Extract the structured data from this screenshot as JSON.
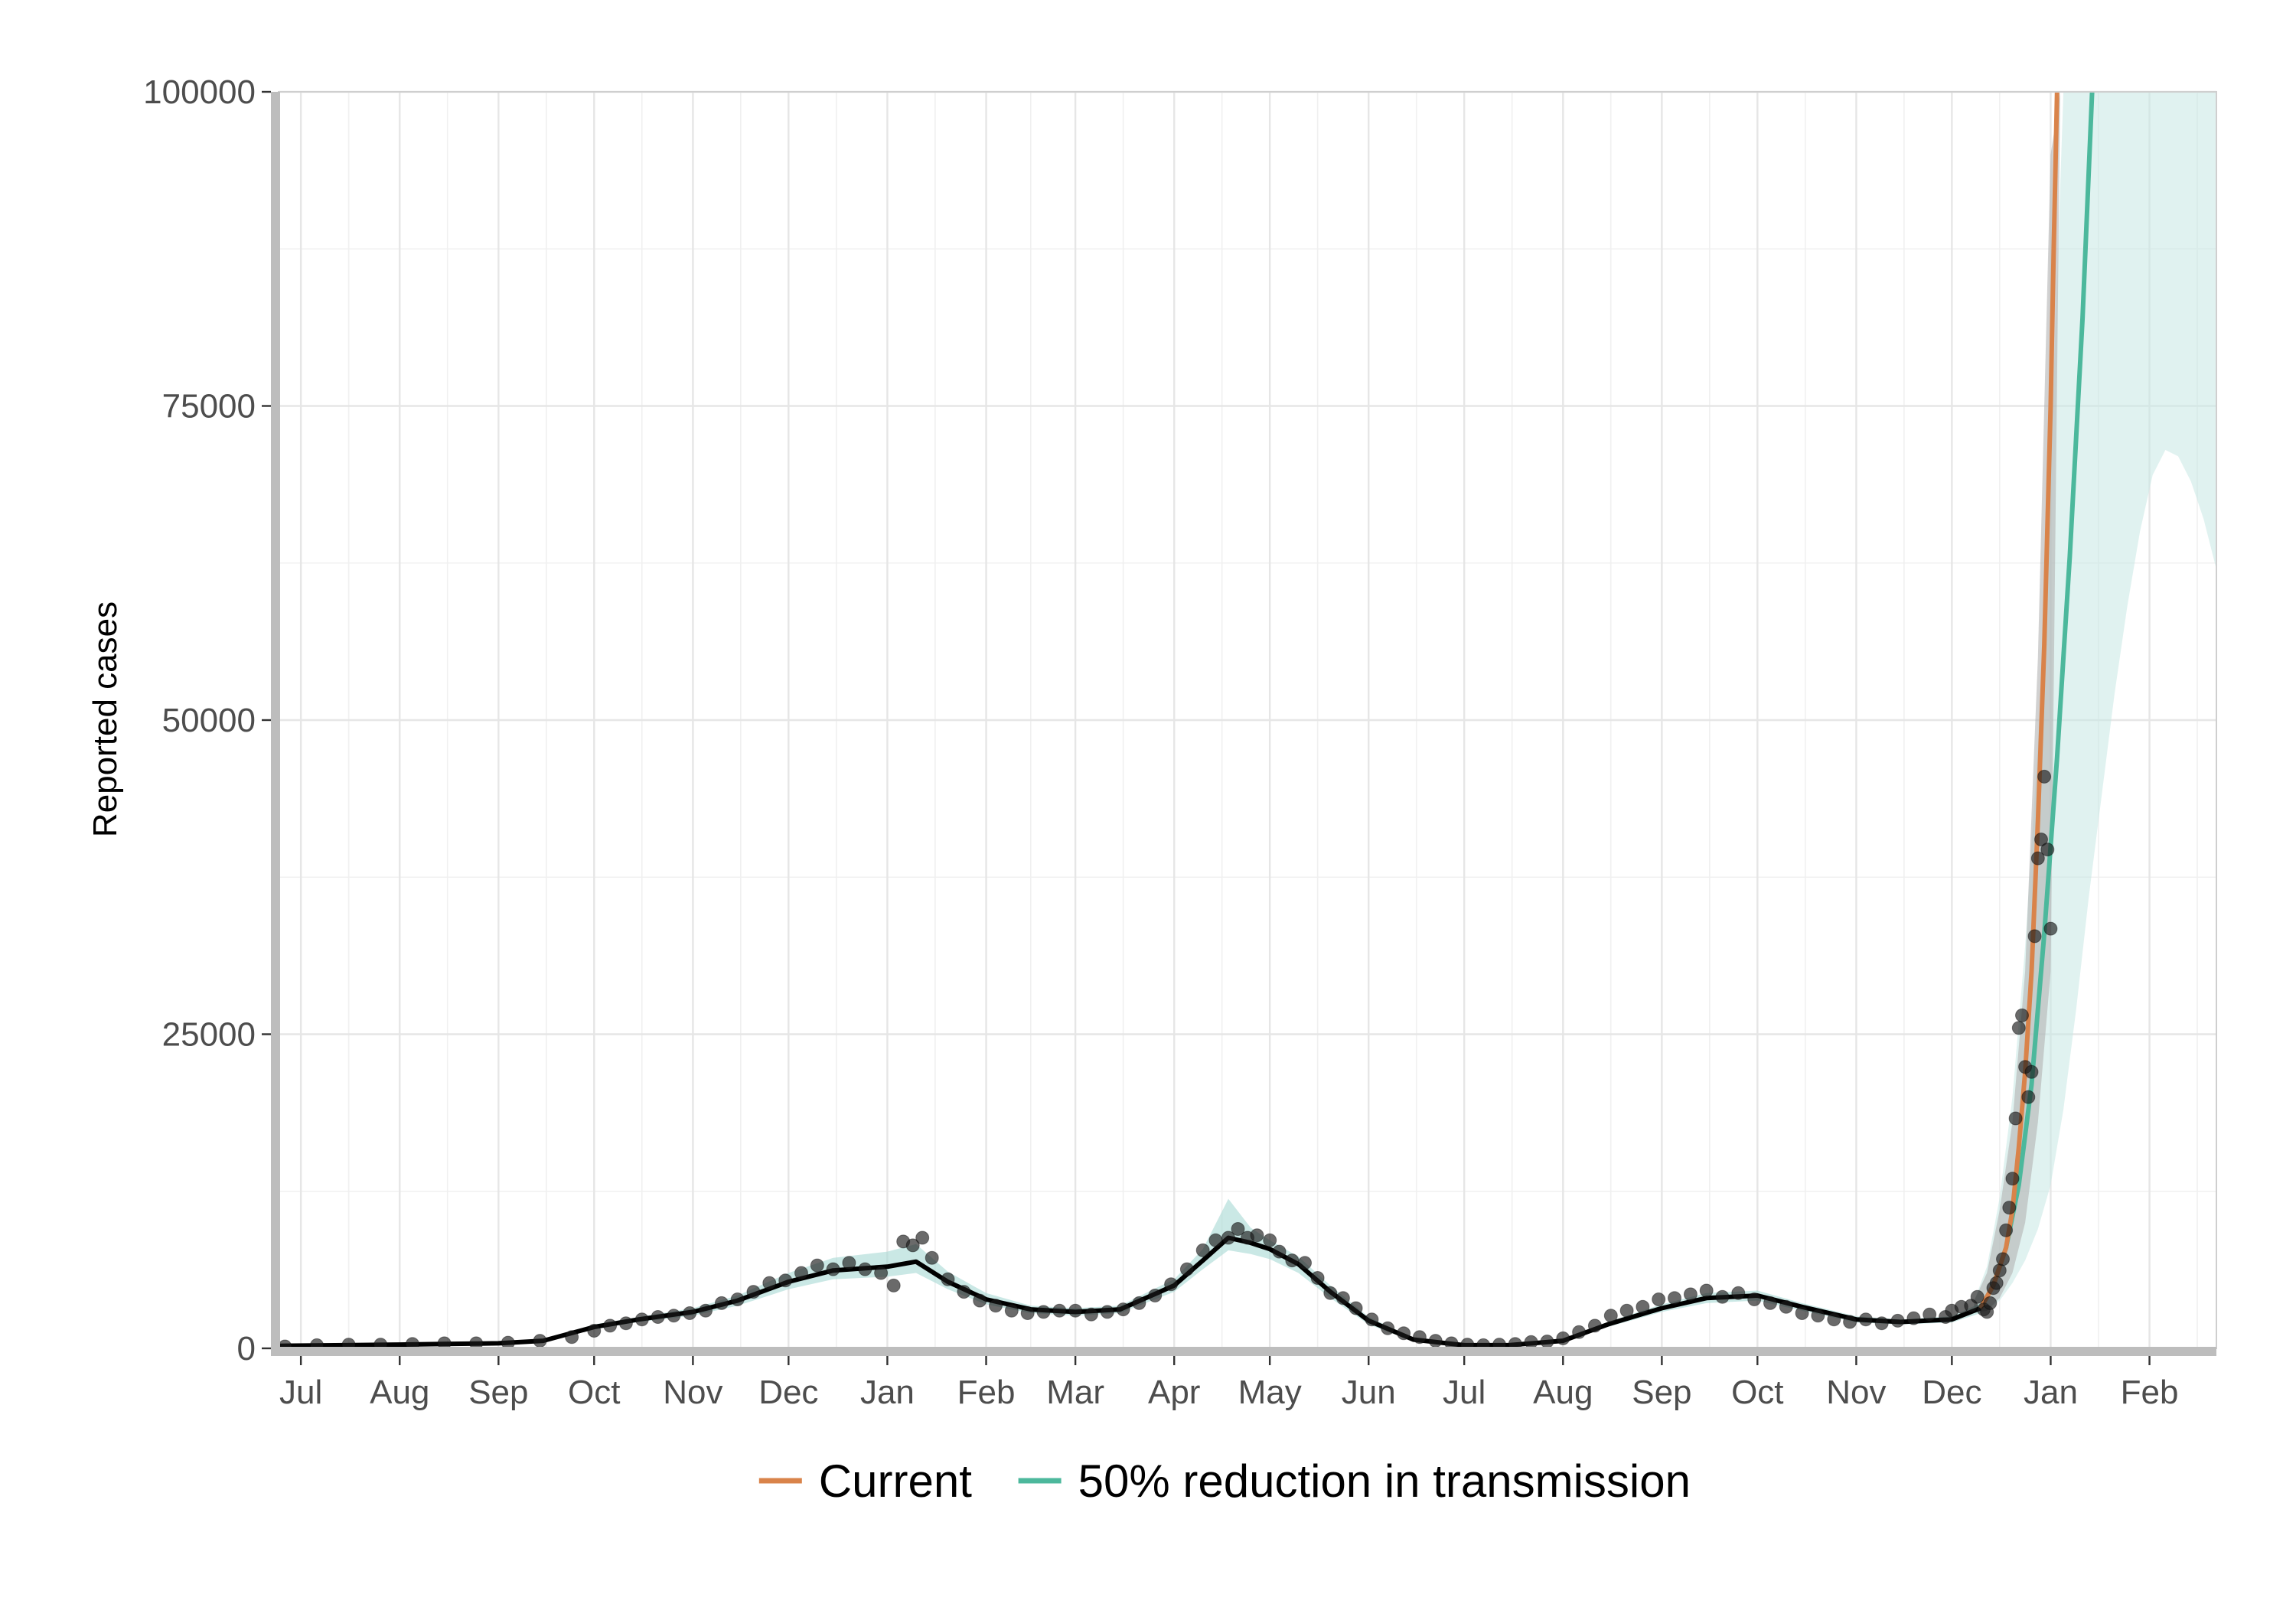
{
  "chart_data": {
    "type": "line",
    "title": "",
    "xlabel": "",
    "ylabel": "Reported cases",
    "ylim": [
      0,
      100000
    ],
    "yticks": [
      0,
      25000,
      50000,
      75000,
      100000
    ],
    "ytick_labels": [
      "0",
      "25000",
      "50000",
      "75000",
      "100000"
    ],
    "xlim": [
      "2020-06-24",
      "2022-02-22"
    ],
    "xticks": [
      "2020-07-01",
      "2020-08-01",
      "2020-09-01",
      "2020-10-01",
      "2020-11-01",
      "2020-12-01",
      "2021-01-01",
      "2021-02-01",
      "2021-03-01",
      "2021-04-01",
      "2021-05-01",
      "2021-06-01",
      "2021-07-01",
      "2021-08-01",
      "2021-09-01",
      "2021-10-01",
      "2021-11-01",
      "2021-12-01",
      "2022-01-01",
      "2022-02-01"
    ],
    "xtick_labels": [
      "Jul",
      "Aug",
      "Sep",
      "Oct",
      "Nov",
      "Dec",
      "Jan",
      "Feb",
      "Mar",
      "Apr",
      "May",
      "Jun",
      "Jul",
      "Aug",
      "Sep",
      "Oct",
      "Nov",
      "Dec",
      "Jan",
      "Feb"
    ],
    "grid": true,
    "legend_position": "bottom",
    "colors": {
      "current": "#d9834a",
      "reduction": "#4cb89c",
      "points": "#1a1a1a",
      "fit": "#000000",
      "ribbon_fit": "#a6d9d4",
      "ribbon_current": "#b3b3b3",
      "ribbon_reduction": "#c7e8e4",
      "grid": "#e6e6e6",
      "axis": "#bdbdbd"
    },
    "series": [
      {
        "name": "Current",
        "color": "#d9834a",
        "x": [
          "2021-12-10",
          "2021-12-14",
          "2021-12-18",
          "2021-12-20",
          "2021-12-22",
          "2021-12-24",
          "2021-12-26",
          "2021-12-28",
          "2021-12-30",
          "2022-01-01",
          "2022-01-02",
          "2022-01-03"
        ],
        "y": [
          3200,
          5000,
          8000,
          11000,
          16000,
          22000,
          30000,
          42000,
          56000,
          75000,
          88000,
          100000
        ],
        "band_x": [
          "2021-12-08",
          "2021-12-12",
          "2021-12-16",
          "2021-12-20",
          "2021-12-24",
          "2021-12-28",
          "2022-01-01",
          "2022-01-04"
        ],
        "band_lower": [
          2800,
          3000,
          4000,
          6000,
          10000,
          18000,
          30000,
          100000
        ],
        "band_upper": [
          3800,
          6000,
          11000,
          18000,
          30000,
          55000,
          95000,
          100000
        ]
      },
      {
        "name": "50% reduction in transmission",
        "color": "#4cb89c",
        "x": [
          "2021-12-10",
          "2021-12-14",
          "2021-12-18",
          "2021-12-22",
          "2021-12-26",
          "2021-12-30",
          "2022-01-03",
          "2022-01-07",
          "2022-01-11",
          "2022-01-14"
        ],
        "y": [
          3200,
          5000,
          8000,
          13000,
          21000,
          33000,
          47000,
          63000,
          82000,
          100000
        ],
        "band_x": [
          "2021-12-08",
          "2021-12-12",
          "2021-12-16",
          "2021-12-20",
          "2021-12-24",
          "2021-12-28",
          "2022-01-01",
          "2022-01-05",
          "2022-01-09",
          "2022-01-13",
          "2022-01-17",
          "2022-01-21",
          "2022-01-25",
          "2022-01-29",
          "2022-02-02",
          "2022-02-06",
          "2022-02-10",
          "2022-02-14",
          "2022-02-18",
          "2022-02-22"
        ],
        "band_lower": [
          2800,
          3000,
          3800,
          5200,
          7000,
          9500,
          13000,
          19000,
          27000,
          36000,
          44000,
          52000,
          59000,
          65000,
          69500,
          71500,
          71000,
          69000,
          66000,
          62000
        ],
        "band_upper": [
          3800,
          6500,
          12000,
          20000,
          32000,
          48000,
          70000,
          100000,
          100000,
          100000,
          100000,
          100000,
          100000,
          100000,
          100000,
          100000,
          100000,
          100000,
          100000,
          100000
        ]
      }
    ],
    "fitted": {
      "x": [
        "2020-06-24",
        "2020-07-15",
        "2020-08-01",
        "2020-08-15",
        "2020-09-01",
        "2020-09-15",
        "2020-10-01",
        "2020-10-15",
        "2020-11-01",
        "2020-11-15",
        "2020-12-01",
        "2020-12-15",
        "2021-01-01",
        "2021-01-10",
        "2021-01-20",
        "2021-02-01",
        "2021-02-15",
        "2021-03-01",
        "2021-03-15",
        "2021-04-01",
        "2021-04-10",
        "2021-04-18",
        "2021-04-25",
        "2021-05-01",
        "2021-05-10",
        "2021-05-20",
        "2021-06-01",
        "2021-06-15",
        "2021-07-01",
        "2021-07-15",
        "2021-08-01",
        "2021-08-15",
        "2021-09-01",
        "2021-09-15",
        "2021-10-01",
        "2021-10-15",
        "2021-11-01",
        "2021-11-15",
        "2021-12-01",
        "2021-12-10"
      ],
      "y": [
        200,
        250,
        300,
        350,
        400,
        600,
        1700,
        2300,
        2900,
        3800,
        5300,
        6200,
        6500,
        6900,
        5300,
        3900,
        3100,
        2900,
        3100,
        5000,
        7000,
        8800,
        8400,
        7900,
        6700,
        4500,
        2200,
        700,
        250,
        250,
        600,
        1900,
        3200,
        4000,
        4200,
        3300,
        2300,
        2100,
        2300,
        3200
      ],
      "band_lower": [
        150,
        200,
        250,
        300,
        350,
        500,
        1500,
        2100,
        2600,
        3400,
        4700,
        5500,
        5700,
        6000,
        4700,
        3500,
        2800,
        2600,
        2800,
        4500,
        6300,
        7800,
        7500,
        7100,
        6000,
        4000,
        1900,
        550,
        180,
        180,
        480,
        1700,
        2900,
        3600,
        3800,
        3000,
        2050,
        1900,
        2050,
        2800
      ],
      "band_upper": [
        260,
        310,
        360,
        420,
        480,
        700,
        1900,
        2500,
        3200,
        4200,
        6000,
        7200,
        7700,
        8300,
        6100,
        4400,
        3400,
        3200,
        3400,
        5500,
        7900,
        11900,
        9600,
        8600,
        7300,
        5000,
        2500,
        850,
        330,
        330,
        750,
        2100,
        3500,
        4400,
        4600,
        3600,
        2550,
        2300,
        2550,
        3600
      ]
    },
    "observed": {
      "x": [
        "2020-06-26",
        "2020-07-06",
        "2020-07-16",
        "2020-07-26",
        "2020-08-05",
        "2020-08-15",
        "2020-08-25",
        "2020-09-04",
        "2020-09-14",
        "2020-09-24",
        "2020-10-01",
        "2020-10-06",
        "2020-10-11",
        "2020-10-16",
        "2020-10-21",
        "2020-10-26",
        "2020-10-31",
        "2020-11-05",
        "2020-11-10",
        "2020-11-15",
        "2020-11-20",
        "2020-11-25",
        "2020-11-30",
        "2020-12-05",
        "2020-12-10",
        "2020-12-15",
        "2020-12-20",
        "2020-12-25",
        "2020-12-30",
        "2021-01-03",
        "2021-01-06",
        "2021-01-09",
        "2021-01-12",
        "2021-01-15",
        "2021-01-20",
        "2021-01-25",
        "2021-01-30",
        "2021-02-04",
        "2021-02-09",
        "2021-02-14",
        "2021-02-19",
        "2021-02-24",
        "2021-03-01",
        "2021-03-06",
        "2021-03-11",
        "2021-03-16",
        "2021-03-21",
        "2021-03-26",
        "2021-03-31",
        "2021-04-05",
        "2021-04-10",
        "2021-04-14",
        "2021-04-18",
        "2021-04-21",
        "2021-04-24",
        "2021-04-27",
        "2021-05-01",
        "2021-05-04",
        "2021-05-08",
        "2021-05-12",
        "2021-05-16",
        "2021-05-20",
        "2021-05-24",
        "2021-05-28",
        "2021-06-02",
        "2021-06-07",
        "2021-06-12",
        "2021-06-17",
        "2021-06-22",
        "2021-06-27",
        "2021-07-02",
        "2021-07-07",
        "2021-07-12",
        "2021-07-17",
        "2021-07-22",
        "2021-07-27",
        "2021-08-01",
        "2021-08-06",
        "2021-08-11",
        "2021-08-16",
        "2021-08-21",
        "2021-08-26",
        "2021-08-31",
        "2021-09-05",
        "2021-09-10",
        "2021-09-15",
        "2021-09-20",
        "2021-09-25",
        "2021-09-30",
        "2021-10-05",
        "2021-10-10",
        "2021-10-15",
        "2021-10-20",
        "2021-10-25",
        "2021-10-30",
        "2021-11-04",
        "2021-11-09",
        "2021-11-14",
        "2021-11-19",
        "2021-11-24",
        "2021-11-29",
        "2021-12-01",
        "2021-12-04",
        "2021-12-07",
        "2021-12-09",
        "2021-12-11",
        "2021-12-12",
        "2021-12-13",
        "2021-12-14",
        "2021-12-15",
        "2021-12-16",
        "2021-12-17",
        "2021-12-18",
        "2021-12-19",
        "2021-12-20",
        "2021-12-21",
        "2021-12-22",
        "2021-12-23",
        "2021-12-24",
        "2021-12-25",
        "2021-12-26",
        "2021-12-27",
        "2021-12-28",
        "2021-12-29",
        "2021-12-30",
        "2021-12-31",
        "2022-01-01"
      ],
      "y": [
        150,
        250,
        300,
        300,
        350,
        400,
        400,
        450,
        600,
        900,
        1400,
        1800,
        2000,
        2300,
        2500,
        2600,
        2800,
        3000,
        3600,
        3900,
        4500,
        5200,
        5400,
        6000,
        6600,
        6300,
        6800,
        6300,
        6000,
        5000,
        8500,
        8200,
        8800,
        7200,
        5500,
        4500,
        3800,
        3400,
        3000,
        2800,
        2900,
        3000,
        3000,
        2700,
        2900,
        3100,
        3600,
        4200,
        5100,
        6300,
        7800,
        8600,
        8800,
        9500,
        8800,
        9000,
        8600,
        7700,
        7000,
        6800,
        5600,
        4400,
        4000,
        3200,
        2300,
        1600,
        1200,
        900,
        600,
        400,
        300,
        250,
        300,
        350,
        500,
        550,
        800,
        1300,
        1800,
        2600,
        3000,
        3300,
        3900,
        4000,
        4300,
        4600,
        4100,
        4400,
        3900,
        3600,
        3300,
        2800,
        2600,
        2300,
        2100,
        2300,
        2000,
        2200,
        2400,
        2700,
        2500,
        3000,
        3300,
        3400,
        4100,
        3100,
        2900,
        3600,
        4800,
        5200,
        6200,
        7100,
        9400,
        11200,
        13500,
        18300,
        25500,
        26500,
        22400,
        20000,
        22000,
        32800,
        39000,
        40500,
        45500,
        39700,
        33400
      ]
    },
    "legend": [
      {
        "label": "Current",
        "color": "#d9834a"
      },
      {
        "label": "50% reduction in transmission",
        "color": "#4cb89c"
      }
    ]
  }
}
